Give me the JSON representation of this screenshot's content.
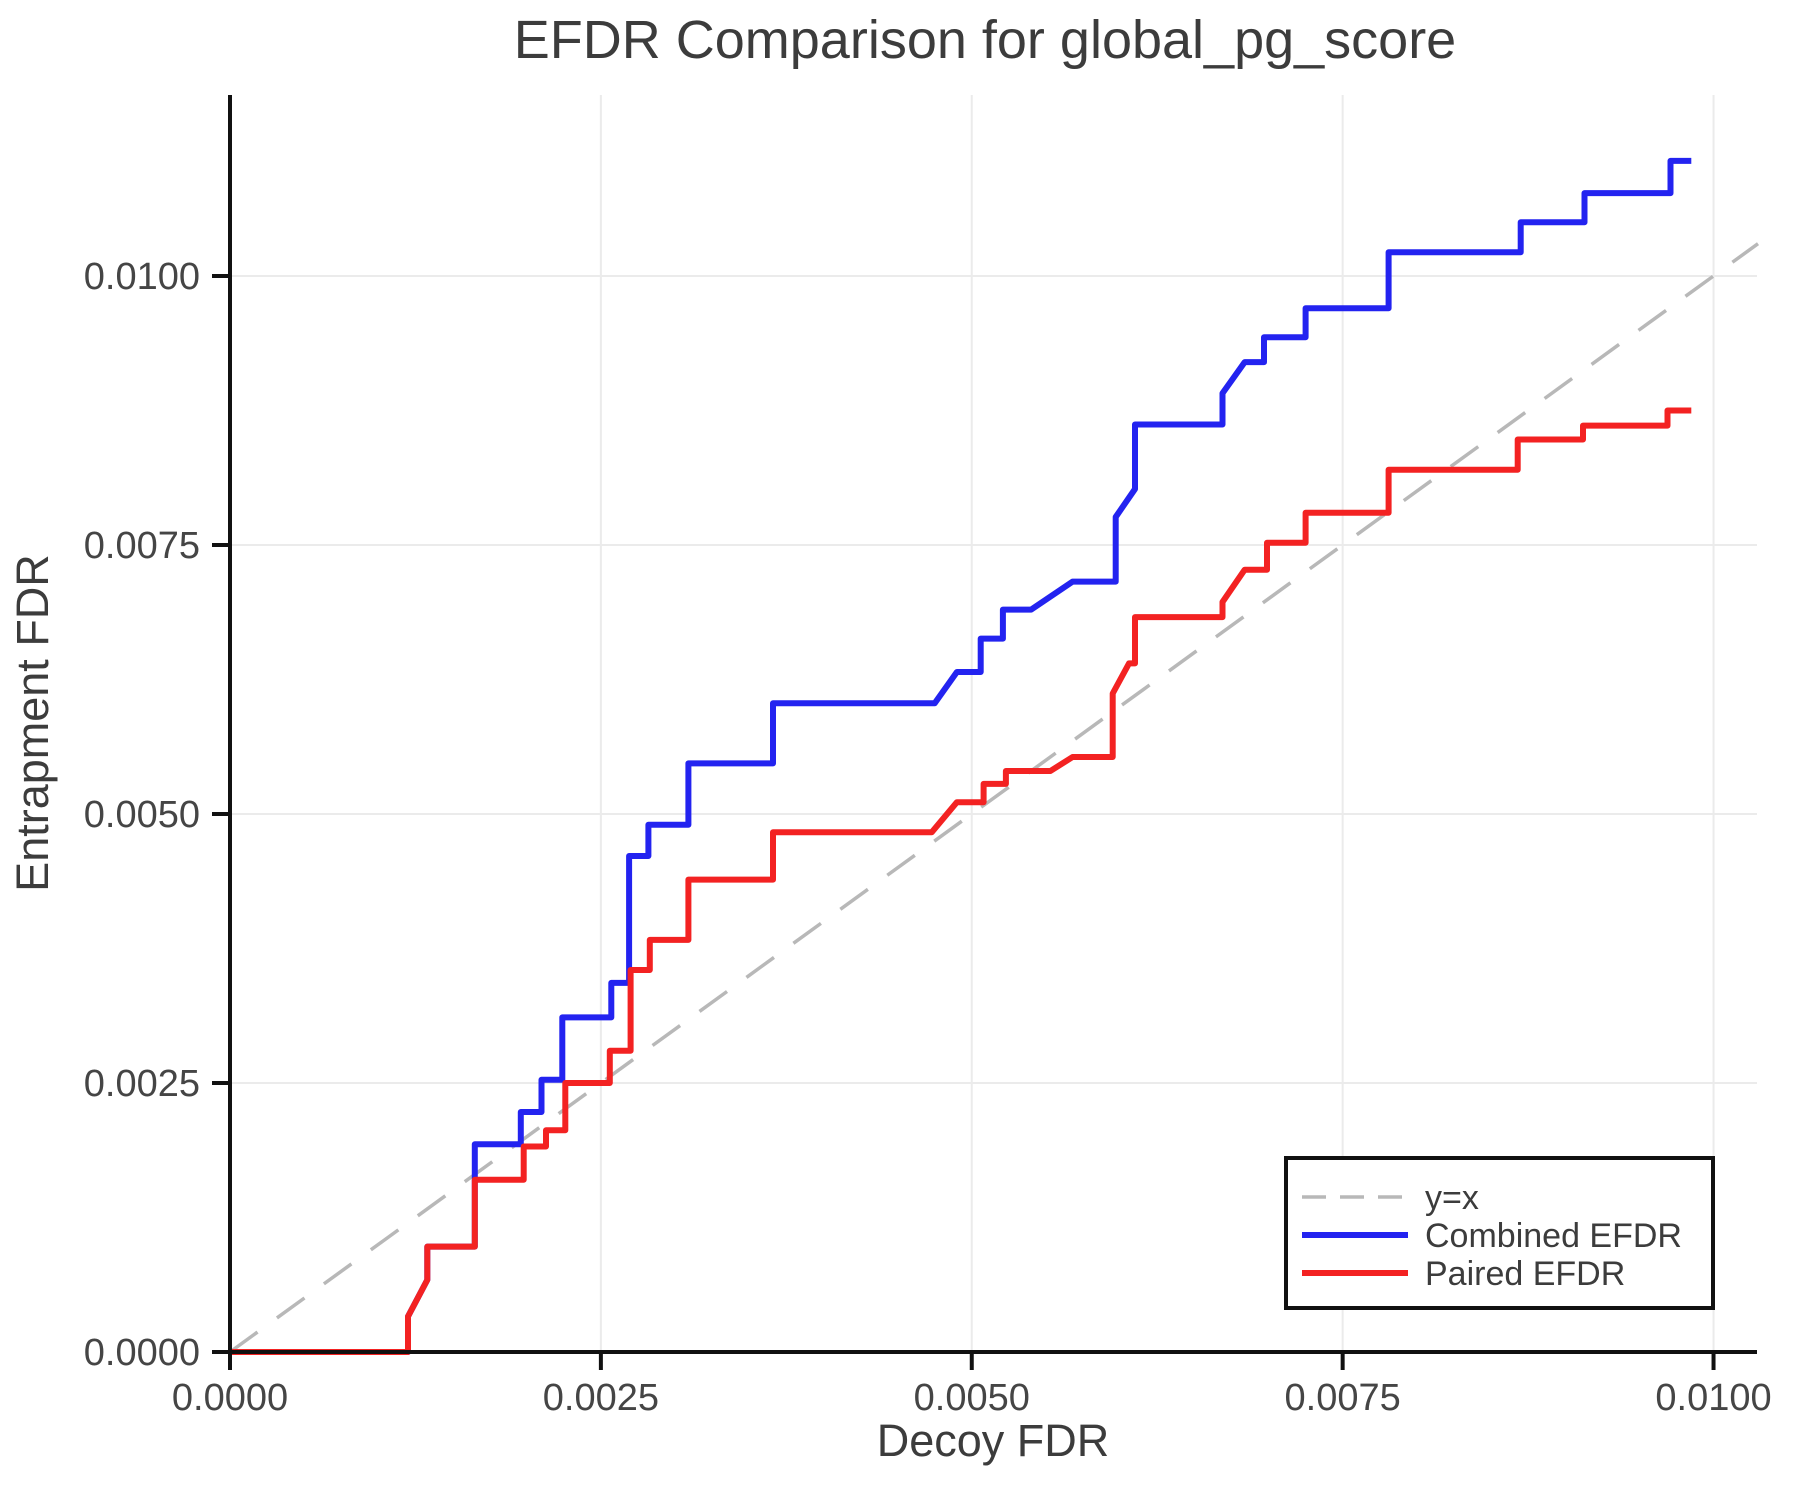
{
  "chart": {
    "title": "EFDR Comparison for global_pg_score",
    "xlabel": "Decoy FDR",
    "ylabel": "Entrapment FDR"
  },
  "chart_data": {
    "type": "line",
    "subtype": "step-comparison",
    "title": "EFDR Comparison for global_pg_score",
    "xlabel": "Decoy FDR",
    "ylabel": "Entrapment FDR",
    "xlim": [
      0,
      0.010293
    ],
    "ylim": [
      0,
      0.011682
    ],
    "grid": true,
    "legend_position": "bottom-right",
    "x_ticks": [
      0,
      0.0025,
      0.005,
      0.0075,
      0.01
    ],
    "x_tick_labels": [
      "0.0000",
      "0.0025",
      "0.0050",
      "0.0075",
      "0.0100"
    ],
    "y_ticks": [
      0,
      0.0025,
      0.005,
      0.0075,
      0.01
    ],
    "y_tick_labels": [
      "0.0000",
      "0.0025",
      "0.0050",
      "0.0075",
      "0.0100"
    ],
    "series": [
      {
        "name": "y=x",
        "color": "#b8b8b8",
        "style": "dashed",
        "width": 3.5,
        "points": [
          [
            0,
            0
          ],
          [
            0.0103,
            0.0103
          ]
        ]
      },
      {
        "name": "Combined EFDR",
        "color": "#2323f0",
        "style": "solid",
        "width": 6,
        "points": [
          [
            0,
            0
          ],
          [
            0.0012,
            0
          ],
          [
            0.0012,
            0.00033
          ],
          [
            0.00133,
            0.00067
          ],
          [
            0.00133,
            0.00098
          ],
          [
            0.00165,
            0.00098
          ],
          [
            0.00165,
            0.00193
          ],
          [
            0.00196,
            0.00193
          ],
          [
            0.00196,
            0.00223
          ],
          [
            0.0021,
            0.00223
          ],
          [
            0.0021,
            0.00253
          ],
          [
            0.00224,
            0.00253
          ],
          [
            0.00224,
            0.00311
          ],
          [
            0.00257,
            0.00311
          ],
          [
            0.00257,
            0.00343
          ],
          [
            0.00269,
            0.00343
          ],
          [
            0.00269,
            0.00461
          ],
          [
            0.00282,
            0.00461
          ],
          [
            0.00282,
            0.0049
          ],
          [
            0.00309,
            0.0049
          ],
          [
            0.00309,
            0.00547
          ],
          [
            0.00366,
            0.00547
          ],
          [
            0.00366,
            0.00603
          ],
          [
            0.00475,
            0.00603
          ],
          [
            0.0049,
            0.00632
          ],
          [
            0.00506,
            0.00632
          ],
          [
            0.00506,
            0.00663
          ],
          [
            0.00521,
            0.00663
          ],
          [
            0.00521,
            0.0069
          ],
          [
            0.0054,
            0.0069
          ],
          [
            0.00568,
            0.00716
          ],
          [
            0.00597,
            0.00716
          ],
          [
            0.00597,
            0.00776
          ],
          [
            0.0061,
            0.00802
          ],
          [
            0.0061,
            0.00862
          ],
          [
            0.00669,
            0.00862
          ],
          [
            0.00669,
            0.00891
          ],
          [
            0.00684,
            0.0092
          ],
          [
            0.00697,
            0.0092
          ],
          [
            0.00697,
            0.00943
          ],
          [
            0.00725,
            0.00943
          ],
          [
            0.00725,
            0.0097
          ],
          [
            0.00781,
            0.0097
          ],
          [
            0.00781,
            0.01022
          ],
          [
            0.0087,
            0.01022
          ],
          [
            0.0087,
            0.0105
          ],
          [
            0.00913,
            0.0105
          ],
          [
            0.00913,
            0.01077
          ],
          [
            0.00971,
            0.01077
          ],
          [
            0.00971,
            0.01107
          ],
          [
            0.00985,
            0.01107
          ]
        ]
      },
      {
        "name": "Paired EFDR",
        "color": "#f32222",
        "style": "solid",
        "width": 6,
        "points": [
          [
            0,
            0
          ],
          [
            0.0012,
            0
          ],
          [
            0.0012,
            0.00033
          ],
          [
            0.00133,
            0.00067
          ],
          [
            0.00133,
            0.00098
          ],
          [
            0.00165,
            0.00098
          ],
          [
            0.00165,
            0.0016
          ],
          [
            0.00198,
            0.0016
          ],
          [
            0.00198,
            0.00191
          ],
          [
            0.00213,
            0.00191
          ],
          [
            0.00213,
            0.00206
          ],
          [
            0.00226,
            0.00206
          ],
          [
            0.00226,
            0.0025
          ],
          [
            0.00256,
            0.0025
          ],
          [
            0.00256,
            0.0028
          ],
          [
            0.0027,
            0.0028
          ],
          [
            0.0027,
            0.00355
          ],
          [
            0.00283,
            0.00355
          ],
          [
            0.00283,
            0.00383
          ],
          [
            0.00309,
            0.00383
          ],
          [
            0.00309,
            0.00439
          ],
          [
            0.00366,
            0.00439
          ],
          [
            0.00366,
            0.00483
          ],
          [
            0.00473,
            0.00483
          ],
          [
            0.0049,
            0.00511
          ],
          [
            0.00508,
            0.00511
          ],
          [
            0.00508,
            0.00528
          ],
          [
            0.00523,
            0.00528
          ],
          [
            0.00523,
            0.0054
          ],
          [
            0.00553,
            0.0054
          ],
          [
            0.00568,
            0.00553
          ],
          [
            0.00595,
            0.00553
          ],
          [
            0.00595,
            0.00612
          ],
          [
            0.00606,
            0.0064
          ],
          [
            0.0061,
            0.0064
          ],
          [
            0.0061,
            0.00683
          ],
          [
            0.00669,
            0.00683
          ],
          [
            0.00669,
            0.00697
          ],
          [
            0.00684,
            0.00727
          ],
          [
            0.00699,
            0.00727
          ],
          [
            0.00699,
            0.00752
          ],
          [
            0.00725,
            0.00752
          ],
          [
            0.00725,
            0.0078
          ],
          [
            0.00781,
            0.0078
          ],
          [
            0.00781,
            0.0082
          ],
          [
            0.00868,
            0.0082
          ],
          [
            0.00868,
            0.00848
          ],
          [
            0.00912,
            0.00848
          ],
          [
            0.00912,
            0.00861
          ],
          [
            0.00969,
            0.00861
          ],
          [
            0.00969,
            0.00875
          ],
          [
            0.00985,
            0.00875
          ]
        ]
      }
    ]
  },
  "colors": {
    "combined": "#2323f0",
    "paired": "#f32222",
    "reference": "#b8b8b8",
    "grid": "#ebebeb",
    "spine": "#111111",
    "text": "#3c3c3c"
  }
}
